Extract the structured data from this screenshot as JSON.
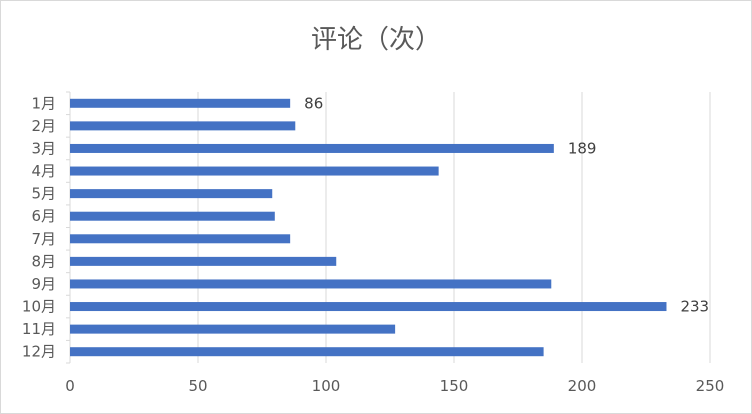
{
  "chart_data": {
    "type": "bar",
    "orientation": "horizontal",
    "title": "评论（次）",
    "xlabel": "",
    "ylabel": "",
    "categories": [
      "1月",
      "2月",
      "3月",
      "4月",
      "5月",
      "6月",
      "7月",
      "8月",
      "9月",
      "10月",
      "11月",
      "12月"
    ],
    "values": [
      86,
      88,
      189,
      144,
      79,
      80,
      86,
      104,
      188,
      233,
      127,
      185
    ],
    "data_labels": {
      "0": "86",
      "2": "189",
      "9": "233"
    },
    "xlim": [
      0,
      250
    ],
    "xticks": [
      0,
      50,
      100,
      150,
      200,
      250
    ],
    "xtick_labels": [
      "0",
      "50",
      "100",
      "150",
      "200",
      "250"
    ],
    "grid": "vertical",
    "legend": "none",
    "bar_color": "#4472c4",
    "gridline_color": "#d9d9d9",
    "text_color": "#595959"
  }
}
